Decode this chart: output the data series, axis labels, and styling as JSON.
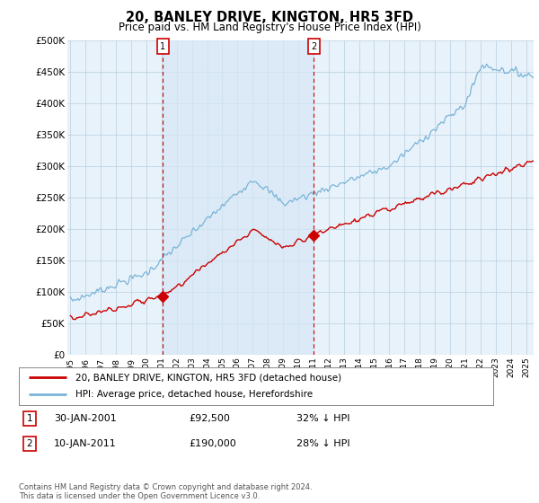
{
  "title": "20, BANLEY DRIVE, KINGTON, HR5 3FD",
  "subtitle": "Price paid vs. HM Land Registry's House Price Index (HPI)",
  "hpi_color": "#7ab4d8",
  "hpi_fill": "#d6e8f5",
  "price_color": "#cc0000",
  "background_color": "#ffffff",
  "plot_bg": "#e8f2fa",
  "ylim": [
    0,
    500000
  ],
  "yticks": [
    0,
    50000,
    100000,
    150000,
    200000,
    250000,
    300000,
    350000,
    400000,
    450000,
    500000
  ],
  "ytick_labels": [
    "£0",
    "£50K",
    "£100K",
    "£150K",
    "£200K",
    "£250K",
    "£300K",
    "£350K",
    "£400K",
    "£450K",
    "£500K"
  ],
  "sale1_year": 2001.08,
  "sale1_price": 92500,
  "sale2_year": 2011.03,
  "sale2_price": 190000,
  "legend_line1": "20, BANLEY DRIVE, KINGTON, HR5 3FD (detached house)",
  "legend_line2": "HPI: Average price, detached house, Herefordshire",
  "footnote": "Contains HM Land Registry data © Crown copyright and database right 2024.\nThis data is licensed under the Open Government Licence v3.0."
}
